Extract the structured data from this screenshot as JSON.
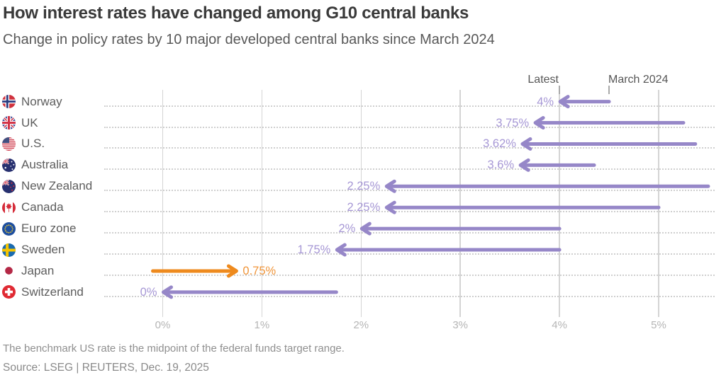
{
  "title": "How interest rates have changed among G10 central banks",
  "subtitle": "Change in policy rates by 10 major developed central banks since March 2024",
  "chart": {
    "latest_label": "Latest",
    "march_label": "March 2024",
    "latest_tick_value": 4.0,
    "march_tick_value": 4.5
  },
  "colors": {
    "purple": "#9687c8",
    "purple_text": "#a697d5",
    "orange": "#ee8a1e",
    "orange_text": "#f0953a",
    "grid": "#d4d4d4",
    "dotted": "#cfcfcf"
  },
  "chart_data": {
    "type": "dumbbell-arrow",
    "title": "How interest rates have changed among G10 central banks",
    "subtitle": "Change in policy rates by 10 major developed central banks since March 2024",
    "categories": [
      "Norway",
      "UK",
      "U.S.",
      "Australia",
      "New Zealand",
      "Canada",
      "Euro zone",
      "Sweden",
      "Japan",
      "Switzerland"
    ],
    "series": [
      {
        "name": "March 2024",
        "values": [
          4.5,
          5.25,
          5.37,
          4.35,
          5.5,
          5.0,
          4.0,
          4.0,
          -0.1,
          1.75
        ]
      },
      {
        "name": "Latest",
        "values": [
          4.0,
          3.75,
          3.62,
          3.6,
          2.25,
          2.25,
          2.0,
          1.75,
          0.75,
          0.0
        ]
      }
    ],
    "rows": [
      {
        "country": "Norway",
        "flag": "norway",
        "latest": 4.0,
        "march": 4.5,
        "value_label": "4%",
        "color": "purple"
      },
      {
        "country": "UK",
        "flag": "uk",
        "latest": 3.75,
        "march": 5.25,
        "value_label": "3.75%",
        "color": "purple"
      },
      {
        "country": "U.S.",
        "flag": "us",
        "latest": 3.62,
        "march": 5.37,
        "value_label": "3.62%",
        "color": "purple"
      },
      {
        "country": "Australia",
        "flag": "australia",
        "latest": 3.6,
        "march": 4.35,
        "value_label": "3.6%",
        "color": "purple"
      },
      {
        "country": "New Zealand",
        "flag": "new-zealand",
        "latest": 2.25,
        "march": 5.5,
        "value_label": "2.25%",
        "color": "purple"
      },
      {
        "country": "Canada",
        "flag": "canada",
        "latest": 2.25,
        "march": 5.0,
        "value_label": "2.25%",
        "color": "purple"
      },
      {
        "country": "Euro zone",
        "flag": "euro",
        "latest": 2.0,
        "march": 4.0,
        "value_label": "2%",
        "color": "purple"
      },
      {
        "country": "Sweden",
        "flag": "sweden",
        "latest": 1.75,
        "march": 4.0,
        "value_label": "1.75%",
        "color": "purple"
      },
      {
        "country": "Japan",
        "flag": "japan",
        "latest": 0.75,
        "march": -0.1,
        "value_label": "0.75%",
        "color": "orange"
      },
      {
        "country": "Switzerland",
        "flag": "switzerland",
        "latest": 0.0,
        "march": 1.75,
        "value_label": "0%",
        "color": "purple"
      }
    ],
    "x_ticks": [
      "0%",
      "1%",
      "2%",
      "3%",
      "4%",
      "5%"
    ],
    "xlim": [
      -0.1,
      5.5
    ],
    "grid": "vertical-solid-plus-row-dotted-leaders",
    "legend_position": "top-annotations"
  },
  "footnote": "The benchmark US rate is the midpoint of the federal funds target range.",
  "source": "Source: LSEG | REUTERS, Dec. 19, 2025"
}
